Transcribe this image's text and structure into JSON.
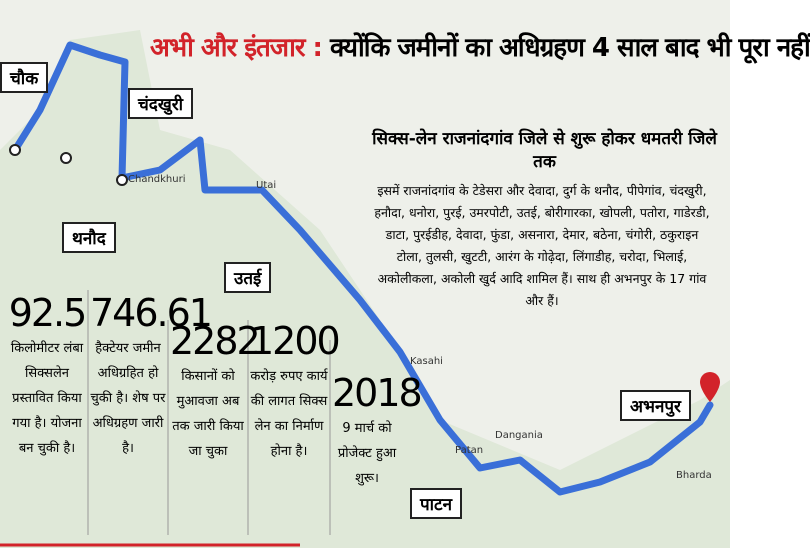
{
  "headline": {
    "kicker": "अभी और इंतजार :",
    "title": "क्योंकि जमीनों का अधिग्रहण 4 साल बाद भी पूरा नहीं"
  },
  "subtitle": "सिक्स-लेन राजनांदगांव जिले से शुरू होकर धमतरी जिले तक",
  "villages": "इसमें राजनांदगांव के टेडेसरा और देवादा, दुर्ग के थनौद, पीपेगांव, चंदखुरी, हनौदा, धनोरा, पुरई, उमरपोटी, उतई, बोरीगारका, खोपली, पतोरा, गाडेरडी, डाटा, पुरईडीह, देवादा, फुंडा, असनारा, देमार, बठेना, चंगोरी, ठकुराइन टोला, तुलसी, खुटटी, आरंग के गोढ़ेदा, लिंगाडीह, चरोदा, भिलाई, अकोलीकला, अकोली खुर्द आदि शामिल हैं। साथ ही अभनपुर के 17 गांव और हैं।",
  "places": {
    "chowk": "चौक",
    "chandkhuri": "चंदखुरी",
    "thanaud": "थनौद",
    "utai": "उतई",
    "patan": "पाटन",
    "abhanpur": "अभनपुर"
  },
  "map_labels": {
    "chandkhuri": "Chandkhuri",
    "utai": "Utai",
    "kasahi": "Kasahi",
    "patan": "Patan",
    "dangania": "Dangania",
    "bharda": "Bharda"
  },
  "stats": [
    {
      "number": 92.5,
      "text": "किलोमीटर लंबा सिक्सलेन प्रस्तावित किया गया है। योजना बन चुकी है।"
    },
    {
      "number": 746.61,
      "text": "हैक्टेयर जमीन अधिग्रहित हो चुकी है। शेष पर अधिग्रहण जारी है।"
    },
    {
      "number": 2282,
      "text": "किसानों को मुआवजा अब तक जारी किया जा चुका"
    },
    {
      "number": 1200,
      "text": "करोड़ रुपए कार्य की लागत सिक्स लेन का निर्माण होना है।"
    },
    {
      "number": 2018,
      "text": "9 मार्च को प्रोजेक्ट हुआ शुरू।"
    }
  ]
}
